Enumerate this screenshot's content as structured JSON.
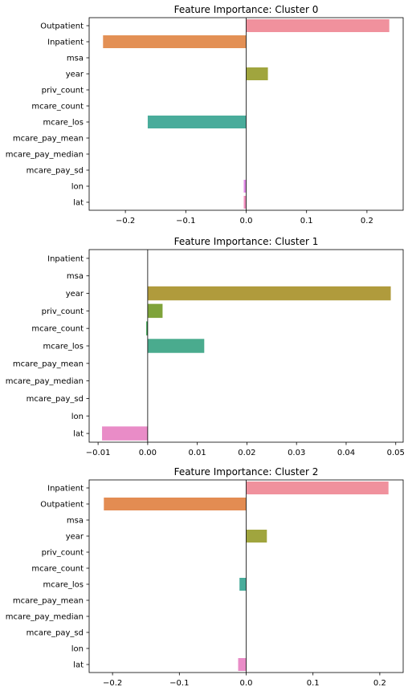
{
  "chart_data": [
    {
      "type": "bar",
      "orientation": "horizontal",
      "title": "Feature Importance: Cluster 0",
      "xlabel": "",
      "ylabel": "",
      "xlim": [
        -0.26,
        0.26
      ],
      "xticks": [
        -0.2,
        -0.1,
        0.0,
        0.1,
        0.2
      ],
      "xtick_labels": [
        "−0.2",
        "−0.1",
        "0.0",
        "0.1",
        "0.2"
      ],
      "categories": [
        "Outpatient",
        "Inpatient",
        "msa",
        "year",
        "priv_count",
        "mcare_count",
        "mcare_los",
        "mcare_pay_mean",
        "mcare_pay_median",
        "mcare_pay_sd",
        "lon",
        "lat"
      ],
      "values": [
        0.237,
        -0.237,
        0.0,
        0.036,
        0.0,
        0.0,
        -0.163,
        0.0,
        0.0,
        0.0,
        -0.004,
        -0.004
      ],
      "colors": [
        "#f0919d",
        "#e39055",
        "#c9a83e",
        "#a0a53e",
        "#79ab3e",
        "#4aae5d",
        "#49ac9b",
        "#4aa9bb",
        "#5aa6e0",
        "#a99bec",
        "#e08be6",
        "#f08fbd"
      ],
      "grid": false,
      "zero_line": true
    },
    {
      "type": "bar",
      "orientation": "horizontal",
      "title": "Feature Importance: Cluster 1",
      "xlabel": "",
      "ylabel": "",
      "xlim": [
        -0.0118,
        0.0515
      ],
      "xticks": [
        -0.01,
        0.0,
        0.01,
        0.02,
        0.03,
        0.04,
        0.05
      ],
      "xtick_labels": [
        "−0.01",
        "0.00",
        "0.01",
        "0.02",
        "0.03",
        "0.04",
        "0.05"
      ],
      "categories": [
        "Inpatient",
        "msa",
        "year",
        "priv_count",
        "mcare_count",
        "mcare_los",
        "mcare_pay_mean",
        "mcare_pay_median",
        "mcare_pay_sd",
        "lon",
        "lat"
      ],
      "values": [
        0.0,
        0.0,
        0.049,
        0.003,
        -0.0003,
        0.0114,
        0.0,
        0.0,
        0.0,
        0.0,
        -0.0092
      ],
      "colors": [
        "#e28b60",
        "#c8a33c",
        "#b09b3c",
        "#7fa33a",
        "#4aaa5e",
        "#4aab8e",
        "#4aa9b1",
        "#4eaad0",
        "#8e9ee8",
        "#c896e6",
        "#e98cc7"
      ],
      "grid": false,
      "zero_line": true
    },
    {
      "type": "bar",
      "orientation": "horizontal",
      "title": "Feature Importance: Cluster 2",
      "xlabel": "",
      "ylabel": "",
      "xlim": [
        -0.235,
        0.235
      ],
      "xticks": [
        -0.2,
        -0.1,
        0.0,
        0.1,
        0.2
      ],
      "xtick_labels": [
        "−0.2",
        "−0.1",
        "0.0",
        "0.1",
        "0.2"
      ],
      "categories": [
        "Inpatient",
        "Outpatient",
        "msa",
        "year",
        "priv_count",
        "mcare_count",
        "mcare_los",
        "mcare_pay_mean",
        "mcare_pay_median",
        "mcare_pay_sd",
        "lon",
        "lat"
      ],
      "values": [
        0.213,
        -0.213,
        0.0,
        0.031,
        0.0,
        0.0,
        -0.01,
        0.0,
        0.0,
        0.0,
        0.0,
        -0.012
      ],
      "colors": [
        "#f0919d",
        "#e38c52",
        "#c9a83e",
        "#a0a53e",
        "#79ab3e",
        "#4aae5d",
        "#49ac9b",
        "#4aa9bb",
        "#5aa6e0",
        "#a99bec",
        "#e08be6",
        "#e98cc7"
      ],
      "grid": false,
      "zero_line": true
    }
  ]
}
